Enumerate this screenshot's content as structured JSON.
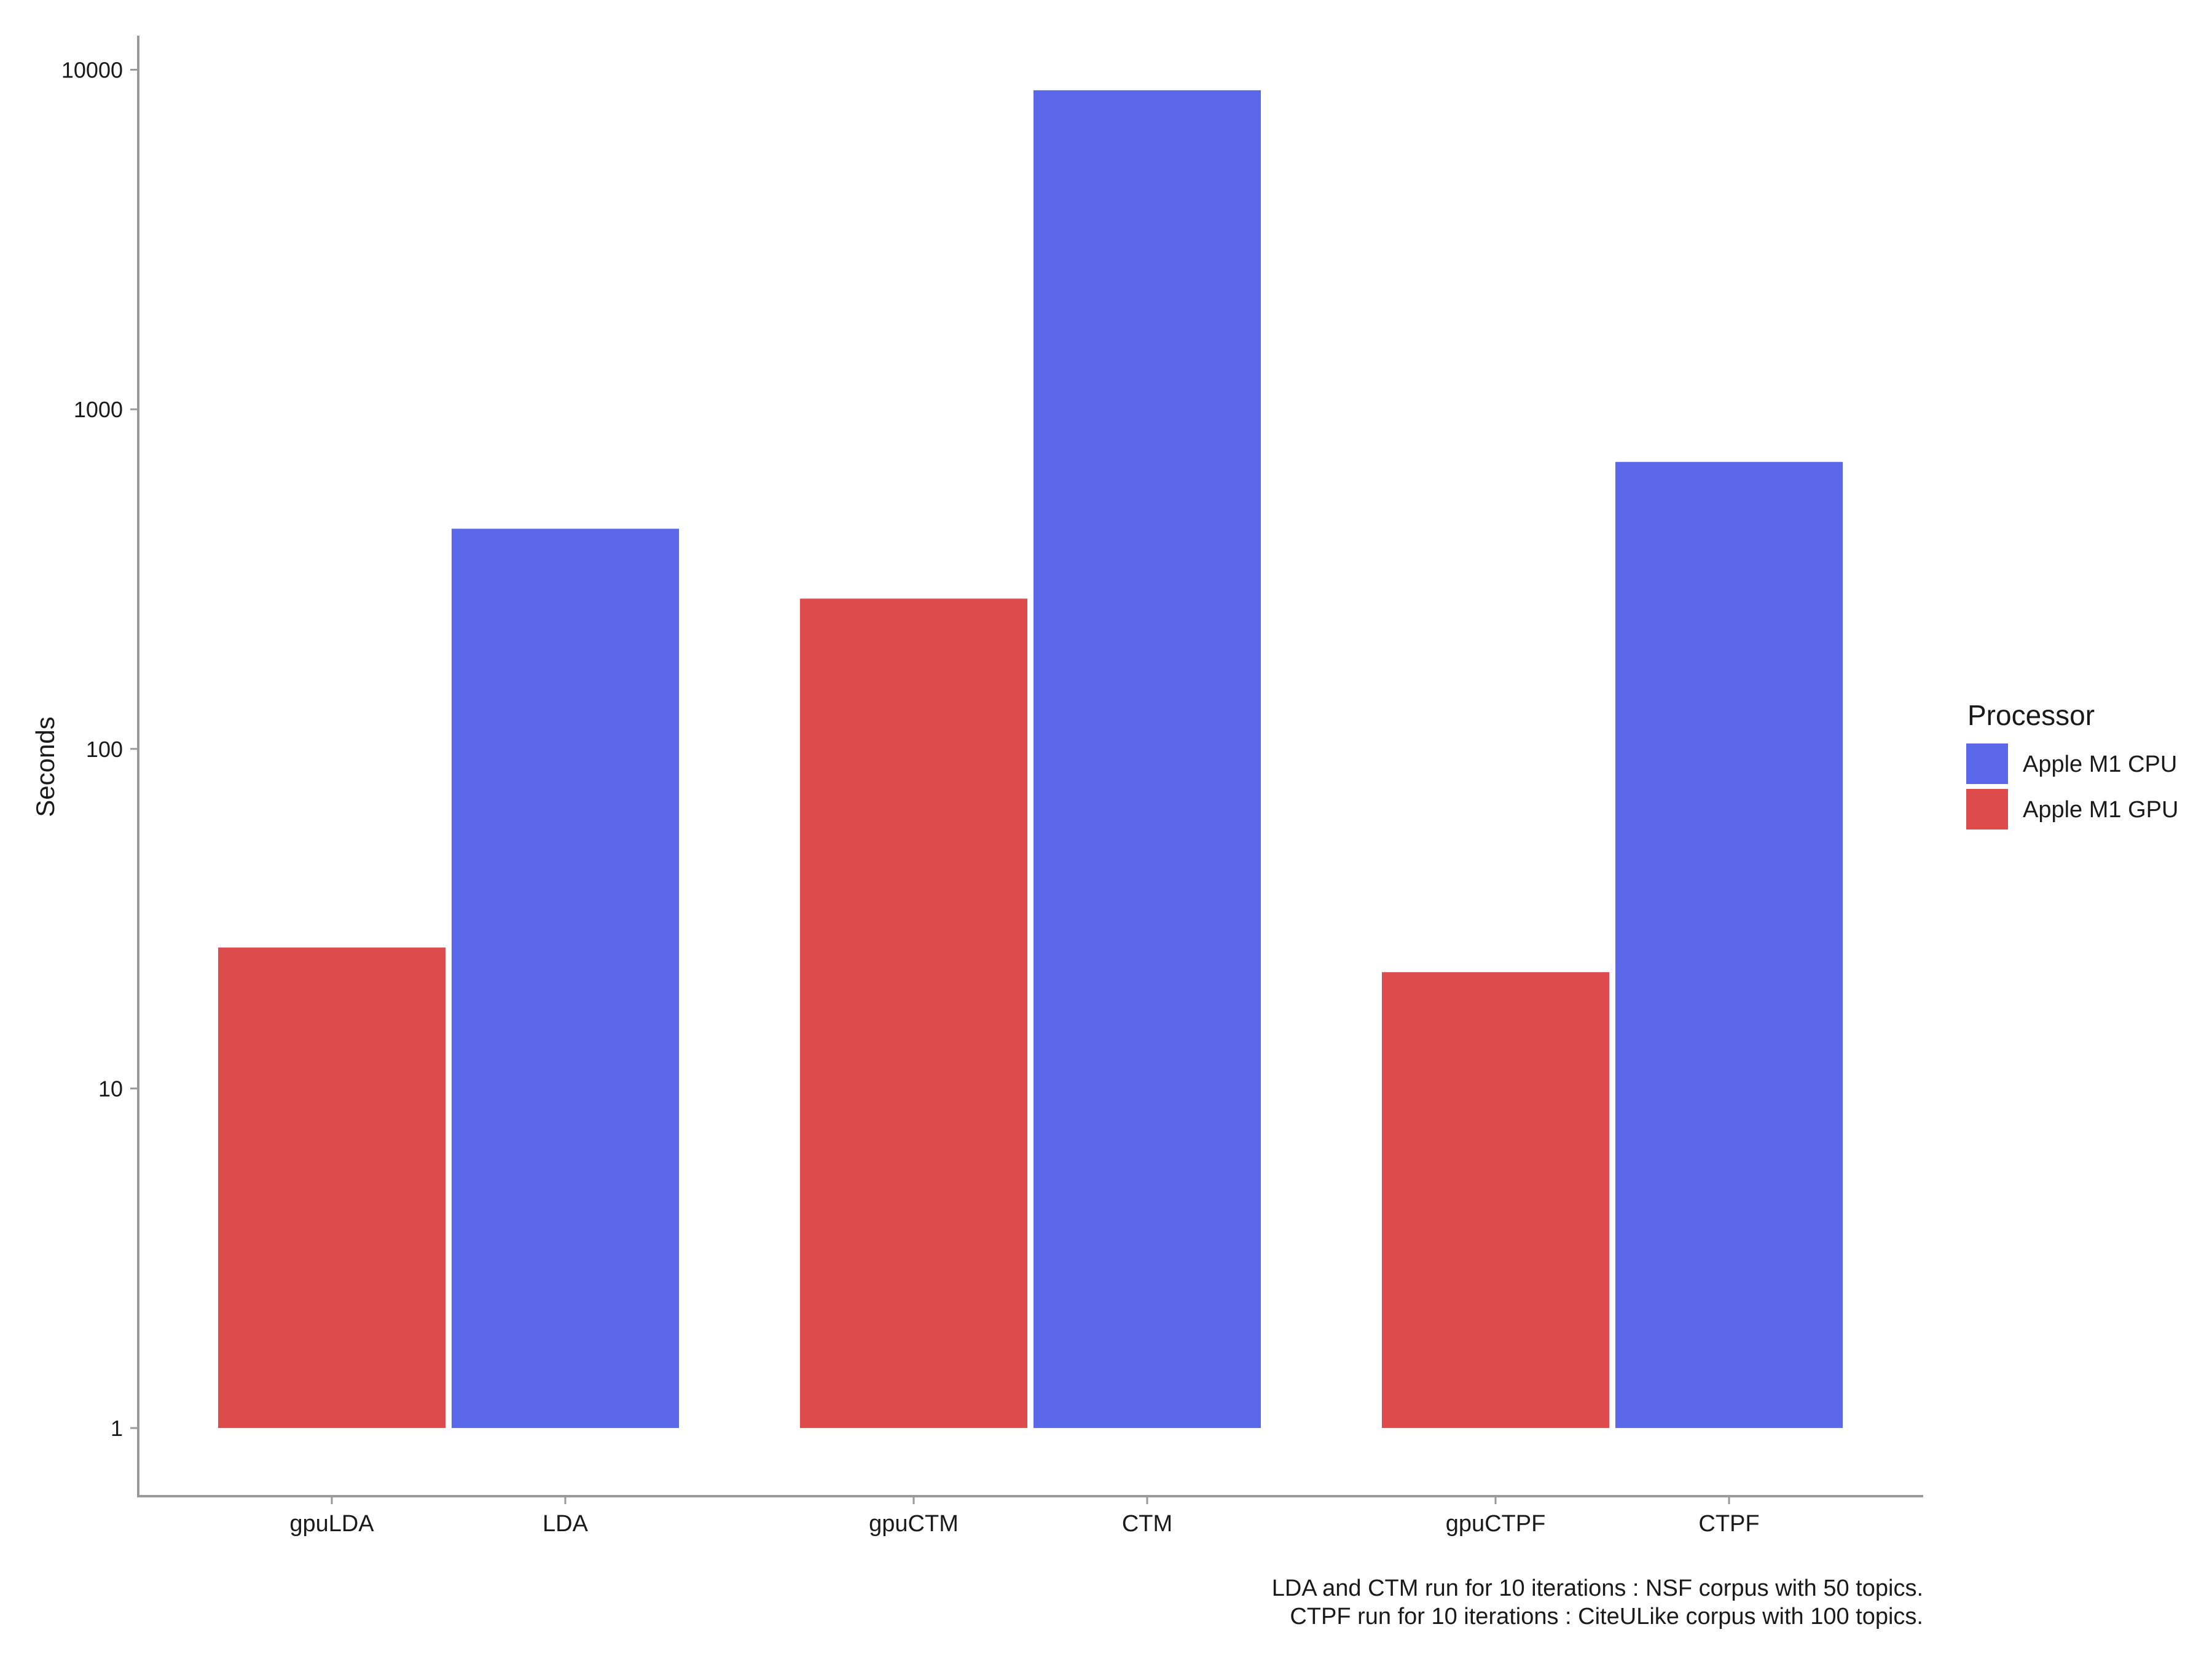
{
  "chart_data": {
    "type": "bar",
    "categories": [
      "gpuLDA",
      "LDA",
      "gpuCTM",
      "CTM",
      "gpuCTPF",
      "CTPF"
    ],
    "groups": [
      [
        "gpuLDA",
        "LDA"
      ],
      [
        "gpuCTM",
        "CTM"
      ],
      [
        "gpuCTPF",
        "CTPF"
      ]
    ],
    "bars": [
      {
        "category": "gpuLDA",
        "processor": "Apple M1 GPU",
        "value": 26
      },
      {
        "category": "LDA",
        "processor": "Apple M1 CPU",
        "value": 445
      },
      {
        "category": "gpuCTM",
        "processor": "Apple M1 GPU",
        "value": 277
      },
      {
        "category": "CTM",
        "processor": "Apple M1 CPU",
        "value": 8700
      },
      {
        "category": "gpuCTPF",
        "processor": "Apple M1 GPU",
        "value": 22
      },
      {
        "category": "CTPF",
        "processor": "Apple M1 CPU",
        "value": 700
      }
    ],
    "ylabel": "Seconds",
    "xlabel": "",
    "yscale": "log10",
    "ylim": [
      0.63,
      12600
    ],
    "yticks": [
      1,
      10,
      100,
      1000,
      10000
    ],
    "ytick_labels": [
      "1",
      "10",
      "100",
      "1000",
      "10000"
    ],
    "grid": false,
    "legend": {
      "title": "Processor",
      "position": "right",
      "entries": [
        {
          "name": "Apple M1 CPU",
          "color": "#5b68e9"
        },
        {
          "name": "Apple M1 GPU",
          "color": "#dd4b4c"
        }
      ]
    },
    "caption": [
      "LDA and CTM run for 10 iterations : NSF corpus with 50 topics.",
      "CTPF run for 10 iterations : CiteULike corpus with 100 topics."
    ]
  }
}
